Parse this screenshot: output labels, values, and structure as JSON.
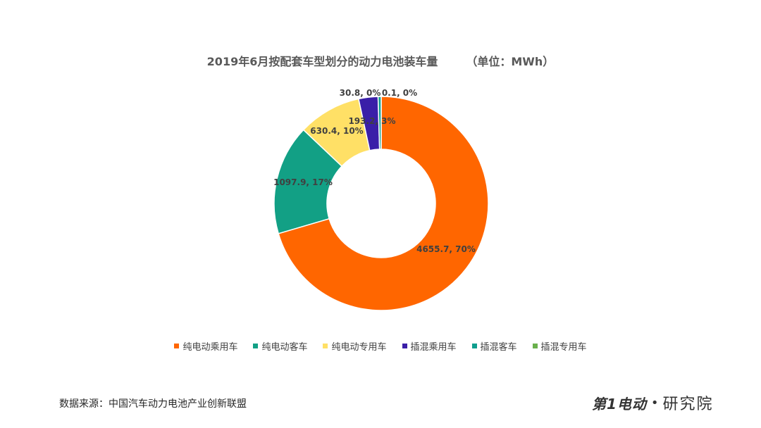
{
  "chart_data": {
    "type": "pie",
    "title": "2019年6月按配套车型划分的动力电池装车量",
    "unit_label": "（单位：MWh）",
    "slices": [
      {
        "name": "纯电动乘用车",
        "value": 4655.7,
        "percent": "70%",
        "color": "#ff6600",
        "label": "4655.7, 70%"
      },
      {
        "name": "纯电动客车",
        "value": 1097.9,
        "percent": "17%",
        "color": "#12a085",
        "label": "1097.9, 17%"
      },
      {
        "name": "纯电动专用车",
        "value": 630.4,
        "percent": "10%",
        "color": "#ffe066",
        "label": "630.4, 10%"
      },
      {
        "name": "插混乘用车",
        "value": 193.2,
        "percent": "3%",
        "color": "#3a1fa8",
        "label": "193.2, 3%"
      },
      {
        "name": "插混客车",
        "value": 30.8,
        "percent": "0%",
        "color": "#0f9e8e",
        "label": "30.8, 0%"
      },
      {
        "name": "插混专用车",
        "value": 0.1,
        "percent": "0%",
        "color": "#6ab04c",
        "label": "0.1, 0%"
      }
    ],
    "legend_position": "bottom"
  },
  "footer": {
    "source": "数据来源：中国汽车动力电池产业创新联盟",
    "logo_brand": "第1电动",
    "logo_dot": "•",
    "logo_suffix": "研究院"
  }
}
